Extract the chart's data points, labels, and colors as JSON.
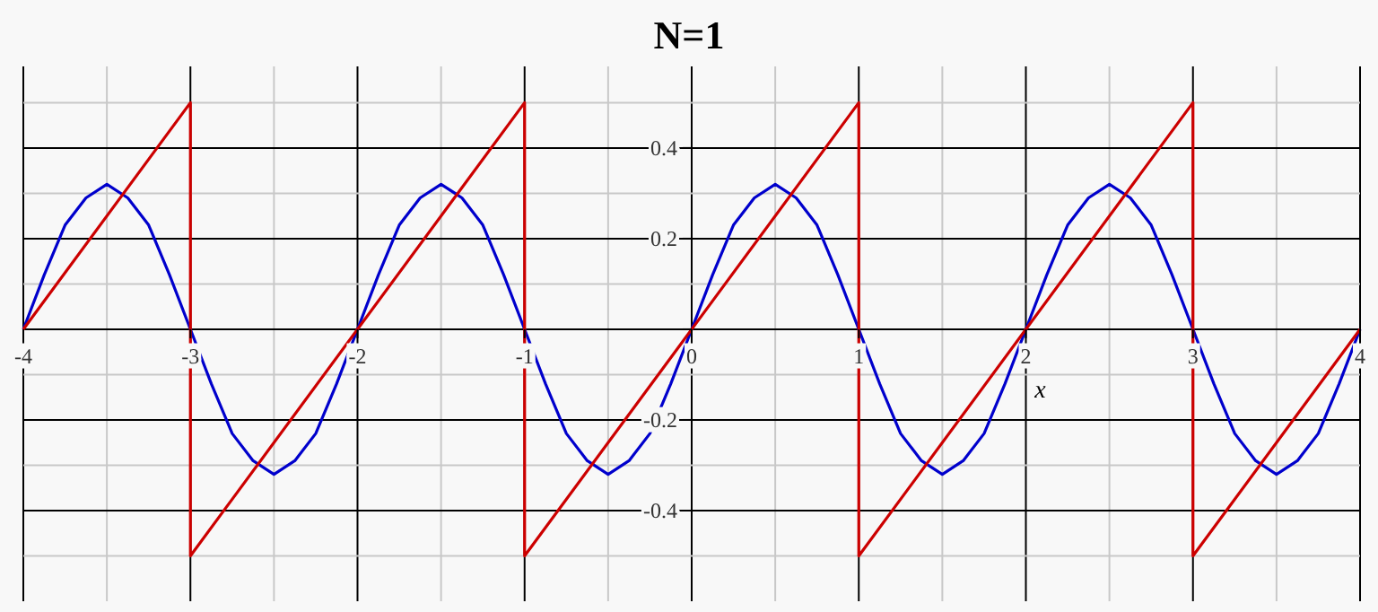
{
  "chart_data": {
    "type": "line",
    "title": "N=1",
    "xlabel": "x",
    "xlim": [
      -4,
      4
    ],
    "ylim": [
      -0.6,
      0.58
    ],
    "xticks": [
      -4,
      -3,
      -2,
      -1,
      {
        "value": 0,
        "label": "0"
      },
      1,
      2,
      3,
      4
    ],
    "yticks": [
      -0.4,
      -0.2,
      {
        "value": 0,
        "label": null
      },
      0.2,
      0.4
    ],
    "grid": true,
    "marker": "none",
    "line_style": "solid",
    "series": [
      {
        "color": "#0000cc",
        "x": [
          -4,
          -3.875,
          -3.75,
          -3.625,
          -3.5,
          -3.375,
          -3.25,
          -3.125,
          -3,
          -2.875,
          -2.75,
          -2.625,
          -2.5,
          -2.375,
          -2.25,
          -2.125,
          -2,
          -1.875,
          -1.75,
          -1.625,
          -1.5,
          -1.375,
          -1.25,
          -1.125,
          -1,
          -0.875,
          -0.75,
          -0.625,
          -0.5,
          -0.375,
          -0.25,
          -0.125,
          0,
          0.125,
          0.25,
          0.375,
          0.5,
          0.625,
          0.75,
          0.875,
          1,
          1.125,
          1.25,
          1.375,
          1.5,
          1.625,
          1.75,
          1.875,
          2,
          2.125,
          2.25,
          2.375,
          2.5,
          2.625,
          2.75,
          2.875,
          3,
          3.125,
          3.25,
          3.375,
          3.5,
          3.625,
          3.75,
          3.875,
          4
        ],
        "values": [
          0,
          0.12,
          0.23,
          0.29,
          0.32,
          0.29,
          0.23,
          0.12,
          0,
          -0.12,
          -0.23,
          -0.29,
          -0.32,
          -0.29,
          -0.23,
          -0.12,
          0,
          0.12,
          0.23,
          0.29,
          0.32,
          0.29,
          0.23,
          0.12,
          0,
          -0.12,
          -0.23,
          -0.29,
          -0.32,
          -0.29,
          -0.23,
          -0.12,
          0,
          0.12,
          0.23,
          0.29,
          0.32,
          0.29,
          0.23,
          0.12,
          0,
          -0.12,
          -0.23,
          -0.29,
          -0.32,
          -0.29,
          -0.23,
          -0.12,
          0,
          0.12,
          0.23,
          0.29,
          0.32,
          0.29,
          0.23,
          0.12,
          0,
          -0.12,
          -0.23,
          -0.29,
          -0.32,
          -0.29,
          -0.23,
          -0.12,
          0
        ]
      },
      {
        "color": "#cc0000",
        "x": [
          -4,
          -3,
          -3,
          -1,
          -1,
          1,
          1,
          3,
          3,
          4
        ],
        "values": [
          0,
          0.5,
          -0.5,
          0.5,
          -0.5,
          0.5,
          -0.5,
          0.5,
          -0.5,
          0
        ]
      }
    ]
  }
}
